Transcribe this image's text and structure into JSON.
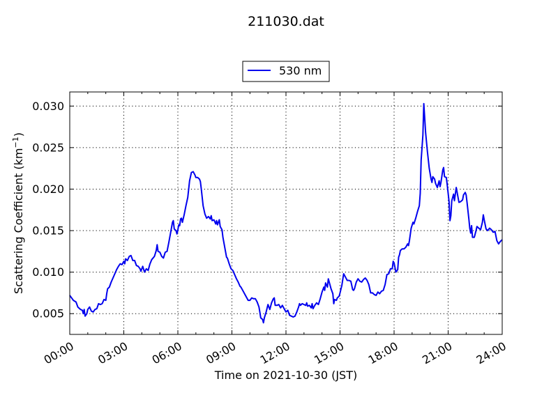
{
  "chart_data": {
    "type": "line",
    "title": "211030.dat",
    "xlabel": "Time on 2021-10-30 (JST)",
    "ylabel_main": "Scattering Coefficient (km",
    "ylabel_sup": "−1",
    "ylabel_close": ")",
    "xlim": [
      0,
      24
    ],
    "ylim": [
      0.0025,
      0.0317
    ],
    "grid": true,
    "legend_position": "top-center",
    "x_ticks": [
      {
        "value": 0,
        "label": "00:00"
      },
      {
        "value": 3,
        "label": "03:00"
      },
      {
        "value": 6,
        "label": "06:00"
      },
      {
        "value": 9,
        "label": "09:00"
      },
      {
        "value": 12,
        "label": "12:00"
      },
      {
        "value": 15,
        "label": "15:00"
      },
      {
        "value": 18,
        "label": "18:00"
      },
      {
        "value": 21,
        "label": "21:00"
      },
      {
        "value": 24,
        "label": "24:00"
      }
    ],
    "y_ticks": [
      {
        "value": 0.005,
        "label": "0.005"
      },
      {
        "value": 0.01,
        "label": "0.010"
      },
      {
        "value": 0.015,
        "label": "0.015"
      },
      {
        "value": 0.02,
        "label": "0.020"
      },
      {
        "value": 0.025,
        "label": "0.025"
      },
      {
        "value": 0.03,
        "label": "0.030"
      }
    ],
    "series": [
      {
        "name": "530 nm",
        "color": "#0000ee",
        "points": [
          [
            0.0,
            0.0072
          ],
          [
            0.1,
            0.0069
          ],
          [
            0.2,
            0.0066
          ],
          [
            0.35,
            0.0064
          ],
          [
            0.45,
            0.0058
          ],
          [
            0.6,
            0.0055
          ],
          [
            0.7,
            0.0054
          ],
          [
            0.75,
            0.005
          ],
          [
            0.8,
            0.0055
          ],
          [
            0.85,
            0.0047
          ],
          [
            0.95,
            0.005
          ],
          [
            1.0,
            0.0055
          ],
          [
            1.1,
            0.0058
          ],
          [
            1.2,
            0.0053
          ],
          [
            1.3,
            0.0052
          ],
          [
            1.4,
            0.0055
          ],
          [
            1.5,
            0.0056
          ],
          [
            1.6,
            0.0062
          ],
          [
            1.7,
            0.0061
          ],
          [
            1.8,
            0.0062
          ],
          [
            1.9,
            0.0067
          ],
          [
            2.0,
            0.0066
          ],
          [
            2.05,
            0.0074
          ],
          [
            2.1,
            0.008
          ],
          [
            2.2,
            0.0082
          ],
          [
            2.3,
            0.0088
          ],
          [
            2.4,
            0.0093
          ],
          [
            2.5,
            0.0098
          ],
          [
            2.6,
            0.0103
          ],
          [
            2.7,
            0.0107
          ],
          [
            2.8,
            0.011
          ],
          [
            2.9,
            0.0109
          ],
          [
            3.0,
            0.0113
          ],
          [
            3.05,
            0.011
          ],
          [
            3.1,
            0.0116
          ],
          [
            3.2,
            0.0114
          ],
          [
            3.3,
            0.0119
          ],
          [
            3.4,
            0.012
          ],
          [
            3.5,
            0.0114
          ],
          [
            3.6,
            0.0114
          ],
          [
            3.7,
            0.0108
          ],
          [
            3.8,
            0.0107
          ],
          [
            3.9,
            0.0104
          ],
          [
            3.95,
            0.0101
          ],
          [
            4.0,
            0.0104
          ],
          [
            4.05,
            0.0107
          ],
          [
            4.15,
            0.01
          ],
          [
            4.25,
            0.0104
          ],
          [
            4.35,
            0.0102
          ],
          [
            4.45,
            0.011
          ],
          [
            4.55,
            0.0115
          ],
          [
            4.7,
            0.0119
          ],
          [
            4.8,
            0.0126
          ],
          [
            4.85,
            0.0133
          ],
          [
            4.9,
            0.0125
          ],
          [
            5.0,
            0.0124
          ],
          [
            5.1,
            0.0119
          ],
          [
            5.2,
            0.0117
          ],
          [
            5.3,
            0.0124
          ],
          [
            5.4,
            0.0125
          ],
          [
            5.5,
            0.0136
          ],
          [
            5.6,
            0.0148
          ],
          [
            5.7,
            0.016
          ],
          [
            5.75,
            0.0162
          ],
          [
            5.8,
            0.0152
          ],
          [
            5.9,
            0.015
          ],
          [
            5.95,
            0.0146
          ],
          [
            6.0,
            0.0151
          ],
          [
            6.05,
            0.0157
          ],
          [
            6.1,
            0.0156
          ],
          [
            6.15,
            0.0164
          ],
          [
            6.2,
            0.0165
          ],
          [
            6.25,
            0.016
          ],
          [
            6.35,
            0.0169
          ],
          [
            6.45,
            0.018
          ],
          [
            6.55,
            0.019
          ],
          [
            6.65,
            0.021
          ],
          [
            6.75,
            0.022
          ],
          [
            6.85,
            0.0221
          ],
          [
            6.95,
            0.0217
          ],
          [
            7.0,
            0.0214
          ],
          [
            7.1,
            0.0214
          ],
          [
            7.2,
            0.0212
          ],
          [
            7.25,
            0.0209
          ],
          [
            7.3,
            0.02
          ],
          [
            7.4,
            0.018
          ],
          [
            7.5,
            0.017
          ],
          [
            7.6,
            0.0165
          ],
          [
            7.7,
            0.0167
          ],
          [
            7.8,
            0.0164
          ],
          [
            7.85,
            0.0168
          ],
          [
            7.9,
            0.0162
          ],
          [
            8.0,
            0.0163
          ],
          [
            8.1,
            0.0158
          ],
          [
            8.15,
            0.0162
          ],
          [
            8.2,
            0.0157
          ],
          [
            8.3,
            0.0163
          ],
          [
            8.35,
            0.0155
          ],
          [
            8.45,
            0.0151
          ],
          [
            8.5,
            0.0142
          ],
          [
            8.6,
            0.013
          ],
          [
            8.7,
            0.0118
          ],
          [
            8.75,
            0.0117
          ],
          [
            8.85,
            0.011
          ],
          [
            8.95,
            0.0104
          ],
          [
            9.05,
            0.0102
          ],
          [
            9.15,
            0.0097
          ],
          [
            9.25,
            0.0092
          ],
          [
            9.35,
            0.0088
          ],
          [
            9.45,
            0.0083
          ],
          [
            9.5,
            0.0082
          ],
          [
            9.6,
            0.0078
          ],
          [
            9.7,
            0.0074
          ],
          [
            9.8,
            0.007
          ],
          [
            9.9,
            0.0066
          ],
          [
            10.0,
            0.0066
          ],
          [
            10.1,
            0.0069
          ],
          [
            10.2,
            0.0068
          ],
          [
            10.3,
            0.0068
          ],
          [
            10.4,
            0.0064
          ],
          [
            10.5,
            0.0058
          ],
          [
            10.55,
            0.0052
          ],
          [
            10.6,
            0.0045
          ],
          [
            10.7,
            0.0043
          ],
          [
            10.75,
            0.0039
          ],
          [
            10.8,
            0.0045
          ],
          [
            10.9,
            0.0052
          ],
          [
            11.0,
            0.0061
          ],
          [
            11.1,
            0.0055
          ],
          [
            11.2,
            0.0063
          ],
          [
            11.3,
            0.0068
          ],
          [
            11.35,
            0.0069
          ],
          [
            11.4,
            0.006
          ],
          [
            11.5,
            0.006
          ],
          [
            11.6,
            0.0061
          ],
          [
            11.7,
            0.0057
          ],
          [
            11.8,
            0.006
          ],
          [
            11.9,
            0.0056
          ],
          [
            12.0,
            0.0052
          ],
          [
            12.1,
            0.0054
          ],
          [
            12.2,
            0.0048
          ],
          [
            12.3,
            0.0047
          ],
          [
            12.4,
            0.0046
          ],
          [
            12.5,
            0.0047
          ],
          [
            12.6,
            0.0052
          ],
          [
            12.7,
            0.0058
          ],
          [
            12.75,
            0.0062
          ],
          [
            12.8,
            0.006
          ],
          [
            12.9,
            0.0062
          ],
          [
            13.0,
            0.0061
          ],
          [
            13.1,
            0.006
          ],
          [
            13.15,
            0.0063
          ],
          [
            13.2,
            0.0059
          ],
          [
            13.3,
            0.006
          ],
          [
            13.4,
            0.0057
          ],
          [
            13.45,
            0.0062
          ],
          [
            13.5,
            0.0056
          ],
          [
            13.6,
            0.006
          ],
          [
            13.7,
            0.0063
          ],
          [
            13.8,
            0.0061
          ],
          [
            13.9,
            0.0068
          ],
          [
            14.0,
            0.0076
          ],
          [
            14.1,
            0.0082
          ],
          [
            14.15,
            0.0078
          ],
          [
            14.2,
            0.0087
          ],
          [
            14.3,
            0.0082
          ],
          [
            14.35,
            0.0092
          ],
          [
            14.4,
            0.0088
          ],
          [
            14.5,
            0.008
          ],
          [
            14.6,
            0.0074
          ],
          [
            14.65,
            0.0062
          ],
          [
            14.7,
            0.0067
          ],
          [
            14.8,
            0.0066
          ],
          [
            14.85,
            0.0069
          ],
          [
            14.95,
            0.0071
          ],
          [
            15.0,
            0.0075
          ],
          [
            15.1,
            0.0084
          ],
          [
            15.2,
            0.0098
          ],
          [
            15.3,
            0.0094
          ],
          [
            15.4,
            0.009
          ],
          [
            15.5,
            0.009
          ],
          [
            15.6,
            0.0089
          ],
          [
            15.7,
            0.0079
          ],
          [
            15.75,
            0.0078
          ],
          [
            15.8,
            0.008
          ],
          [
            15.9,
            0.0088
          ],
          [
            16.0,
            0.0092
          ],
          [
            16.1,
            0.0089
          ],
          [
            16.2,
            0.0088
          ],
          [
            16.3,
            0.0091
          ],
          [
            16.4,
            0.0093
          ],
          [
            16.5,
            0.009
          ],
          [
            16.6,
            0.0085
          ],
          [
            16.7,
            0.0075
          ],
          [
            16.8,
            0.0075
          ],
          [
            16.9,
            0.0073
          ],
          [
            17.0,
            0.0072
          ],
          [
            17.1,
            0.0076
          ],
          [
            17.2,
            0.0074
          ],
          [
            17.3,
            0.0077
          ],
          [
            17.4,
            0.0078
          ],
          [
            17.5,
            0.0085
          ],
          [
            17.6,
            0.0097
          ],
          [
            17.7,
            0.0098
          ],
          [
            17.8,
            0.0104
          ],
          [
            17.9,
            0.0104
          ],
          [
            17.95,
            0.0113
          ],
          [
            18.0,
            0.0111
          ],
          [
            18.1,
            0.01
          ],
          [
            18.2,
            0.0103
          ],
          [
            18.25,
            0.0118
          ],
          [
            18.3,
            0.0121
          ],
          [
            18.35,
            0.0126
          ],
          [
            18.45,
            0.0128
          ],
          [
            18.55,
            0.0128
          ],
          [
            18.65,
            0.013
          ],
          [
            18.75,
            0.0134
          ],
          [
            18.8,
            0.0132
          ],
          [
            18.85,
            0.0138
          ],
          [
            18.95,
            0.0153
          ],
          [
            19.05,
            0.016
          ],
          [
            19.1,
            0.0158
          ],
          [
            19.2,
            0.0165
          ],
          [
            19.3,
            0.0173
          ],
          [
            19.4,
            0.018
          ],
          [
            19.45,
            0.0195
          ],
          [
            19.5,
            0.0235
          ],
          [
            19.6,
            0.0265
          ],
          [
            19.65,
            0.0303
          ],
          [
            19.75,
            0.0268
          ],
          [
            19.85,
            0.0245
          ],
          [
            19.95,
            0.0225
          ],
          [
            20.05,
            0.0212
          ],
          [
            20.1,
            0.0208
          ],
          [
            20.15,
            0.0215
          ],
          [
            20.25,
            0.0212
          ],
          [
            20.3,
            0.0207
          ],
          [
            20.4,
            0.0202
          ],
          [
            20.5,
            0.021
          ],
          [
            20.55,
            0.0203
          ],
          [
            20.6,
            0.0208
          ],
          [
            20.7,
            0.0223
          ],
          [
            20.75,
            0.0226
          ],
          [
            20.8,
            0.0215
          ],
          [
            20.9,
            0.0214
          ],
          [
            20.95,
            0.0205
          ],
          [
            21.05,
            0.0185
          ],
          [
            21.1,
            0.0162
          ],
          [
            21.15,
            0.0168
          ],
          [
            21.2,
            0.0186
          ],
          [
            21.3,
            0.0194
          ],
          [
            21.35,
            0.0186
          ],
          [
            21.45,
            0.0202
          ],
          [
            21.5,
            0.0196
          ],
          [
            21.6,
            0.0184
          ],
          [
            21.7,
            0.0185
          ],
          [
            21.8,
            0.0187
          ],
          [
            21.85,
            0.0193
          ],
          [
            21.95,
            0.0196
          ],
          [
            22.0,
            0.0193
          ],
          [
            22.05,
            0.0184
          ],
          [
            22.15,
            0.0164
          ],
          [
            22.2,
            0.0153
          ],
          [
            22.25,
            0.0147
          ],
          [
            22.3,
            0.0156
          ],
          [
            22.35,
            0.0142
          ],
          [
            22.45,
            0.0142
          ],
          [
            22.55,
            0.015
          ],
          [
            22.6,
            0.0155
          ],
          [
            22.7,
            0.0153
          ],
          [
            22.8,
            0.0151
          ],
          [
            22.9,
            0.016
          ],
          [
            22.95,
            0.0169
          ],
          [
            23.0,
            0.0163
          ],
          [
            23.1,
            0.0152
          ],
          [
            23.2,
            0.015
          ],
          [
            23.3,
            0.0153
          ],
          [
            23.4,
            0.0151
          ],
          [
            23.5,
            0.0148
          ],
          [
            23.6,
            0.0149
          ],
          [
            23.7,
            0.0138
          ],
          [
            23.8,
            0.0134
          ],
          [
            23.9,
            0.0137
          ],
          [
            24.0,
            0.0139
          ]
        ]
      }
    ]
  }
}
